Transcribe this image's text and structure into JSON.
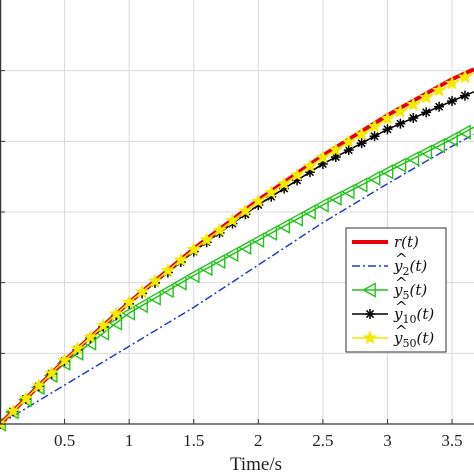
{
  "chart_data": {
    "type": "line",
    "xlabel": "Time/s",
    "ylabel": "",
    "xlim": [
      0.0,
      3.67
    ],
    "ylim": [
      0.0,
      6.0
    ],
    "x_ticks": [
      0.5,
      1,
      1.5,
      2,
      2.5,
      3,
      3.5
    ],
    "x_tick_labels": [
      "0.5",
      "1",
      "1.5",
      "2",
      "2.5",
      "3",
      "3.5"
    ],
    "y_tick_values": [
      1,
      2,
      3,
      4,
      5
    ],
    "grid": true,
    "legend_position": "right",
    "series": [
      {
        "name": "r(t)",
        "color": "#e8000b",
        "line_style": "solid",
        "marker": "none",
        "points": [
          [
            0,
            0
          ],
          [
            0.5,
            0.9
          ],
          [
            1,
            1.72
          ],
          [
            1.5,
            2.48
          ],
          [
            2,
            3.17
          ],
          [
            2.5,
            3.8
          ],
          [
            3,
            4.37
          ],
          [
            3.5,
            4.88
          ],
          [
            3.67,
            5.02
          ]
        ]
      },
      {
        "name": "ŷ2(t)",
        "color": "#1f3fbf",
        "line_style": "dashdot",
        "marker": "none",
        "points": [
          [
            0,
            0
          ],
          [
            0.5,
            0.55
          ],
          [
            1,
            1.1
          ],
          [
            1.5,
            1.65
          ],
          [
            2,
            2.25
          ],
          [
            2.5,
            2.85
          ],
          [
            3,
            3.4
          ],
          [
            3.5,
            3.93
          ],
          [
            3.67,
            4.1
          ]
        ]
      },
      {
        "name": "ŷ5(t)",
        "color": "#22c41a",
        "line_style": "solid",
        "marker": "triangle-left",
        "points": [
          [
            0,
            0
          ],
          [
            0.5,
            0.86
          ],
          [
            1,
            1.57
          ],
          [
            1.5,
            2.1
          ],
          [
            2,
            2.6
          ],
          [
            2.5,
            3.1
          ],
          [
            3,
            3.57
          ],
          [
            3.5,
            4.03
          ],
          [
            3.67,
            4.2
          ]
        ]
      },
      {
        "name": "ŷ10(t)",
        "color": "#000000",
        "line_style": "solid",
        "marker": "asterisk",
        "points": [
          [
            0,
            0
          ],
          [
            0.5,
            0.89
          ],
          [
            1,
            1.7
          ],
          [
            1.5,
            2.44
          ],
          [
            2,
            3.1
          ],
          [
            2.5,
            3.68
          ],
          [
            3,
            4.17
          ],
          [
            3.5,
            4.57
          ],
          [
            3.67,
            4.7
          ]
        ]
      },
      {
        "name": "ŷ50(t)",
        "color": "#f2ea00",
        "line_style": "solid",
        "marker": "star",
        "points": [
          [
            0,
            0
          ],
          [
            0.5,
            0.9
          ],
          [
            1,
            1.72
          ],
          [
            1.5,
            2.47
          ],
          [
            2,
            3.15
          ],
          [
            2.5,
            3.77
          ],
          [
            3,
            4.32
          ],
          [
            3.5,
            4.82
          ],
          [
            3.67,
            4.97
          ]
        ]
      }
    ]
  },
  "legend": {
    "items": [
      {
        "base": "r",
        "hat": false,
        "sub": "",
        "arg": "(t)"
      },
      {
        "base": "y",
        "hat": true,
        "sub": "2",
        "arg": "(t)"
      },
      {
        "base": "y",
        "hat": true,
        "sub": "5",
        "arg": "(t)"
      },
      {
        "base": "y",
        "hat": true,
        "sub": "10",
        "arg": "(t)"
      },
      {
        "base": "y",
        "hat": true,
        "sub": "50",
        "arg": "(t)"
      }
    ]
  }
}
